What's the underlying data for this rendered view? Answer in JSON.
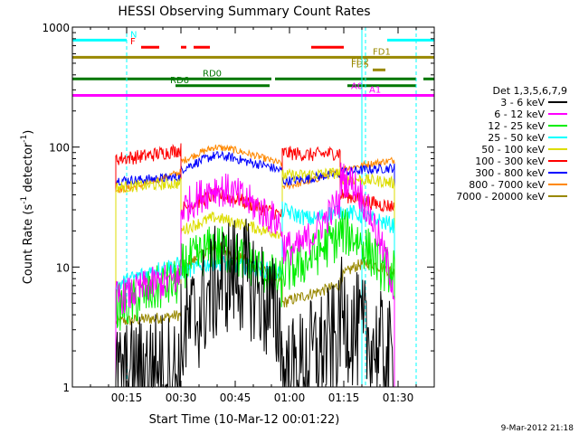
{
  "chart_data": {
    "type": "line",
    "title": "HESSI Observing Summary Count Rates",
    "xlabel": "Start Time (10-Mar-12 00:01:22)",
    "ylabel_main": "Count Rate (s",
    "ylabel_sup1": "-1",
    "ylabel_mid": " detector",
    "ylabel_sup2": "-1",
    "ylabel_end": ")",
    "date_stamp": "9-Mar-2012 21:18",
    "y_scale": "log",
    "ylim": [
      1,
      1000
    ],
    "xlim_minutes": [
      0,
      100
    ],
    "x_ticks": [
      {
        "label": "00:15",
        "value": 15
      },
      {
        "label": "00:30",
        "value": 30
      },
      {
        "label": "00:45",
        "value": 45
      },
      {
        "label": "01:00",
        "value": 60
      },
      {
        "label": "01:15",
        "value": 75
      },
      {
        "label": "01:30",
        "value": 90
      }
    ],
    "y_ticks": [
      {
        "label": "1",
        "value": 1
      },
      {
        "label": "10",
        "value": 10
      },
      {
        "label": "100",
        "value": 100
      },
      {
        "label": "1000",
        "value": 1000
      }
    ],
    "legend_title": "Det 1,3,5,6,7,9",
    "legend_placement": "right, outside plot",
    "series": [
      {
        "name": "3 - 6 keV",
        "color": "#000000",
        "start": 12,
        "end": 89,
        "segments": [
          {
            "from": 12,
            "to": 30,
            "values": [
              1.1,
              1.2,
              1.5,
              1.4,
              1.3
            ]
          },
          {
            "from": 30,
            "to": 58,
            "values": [
              2.5,
              4,
              7,
              9,
              8,
              5,
              3
            ]
          },
          {
            "from": 58,
            "to": 74,
            "values": [
              1.2,
              1.3,
              1.8,
              2.2,
              2.5
            ]
          },
          {
            "from": 74,
            "to": 89,
            "values": [
              4,
              3,
              2.5,
              2,
              1.5
            ]
          }
        ],
        "noise": 0.5
      },
      {
        "name": "6 - 12 keV",
        "color": "#ff00ff",
        "start": 12,
        "end": 89,
        "segments": [
          {
            "from": 12,
            "to": 30,
            "values": [
              5.5,
              6,
              7,
              7.5,
              8
            ]
          },
          {
            "from": 30,
            "to": 58,
            "values": [
              30,
              38,
              46,
              42,
              35,
              28,
              22
            ]
          },
          {
            "from": 58,
            "to": 74,
            "values": [
              15,
              14,
              18,
              25,
              35
            ]
          },
          {
            "from": 74,
            "to": 89,
            "values": [
              55,
              50,
              30,
              15,
              6
            ]
          }
        ],
        "noise": 0.15
      },
      {
        "name": "12 - 25 keV",
        "color": "#00ee00",
        "start": 12,
        "end": 89,
        "segments": [
          {
            "from": 12,
            "to": 30,
            "values": [
              4.5,
              5,
              6,
              7,
              7.5
            ]
          },
          {
            "from": 30,
            "to": 58,
            "values": [
              10,
              12,
              15,
              13,
              11,
              9,
              7
            ]
          },
          {
            "from": 58,
            "to": 74,
            "values": [
              9,
              10,
              12,
              15,
              18
            ]
          },
          {
            "from": 74,
            "to": 89,
            "values": [
              20,
              18,
              14,
              10,
              9
            ]
          }
        ],
        "noise": 0.2
      },
      {
        "name": "25 - 50 keV",
        "color": "#00ffff",
        "start": 12,
        "end": 89,
        "segments": [
          {
            "from": 12,
            "to": 30,
            "values": [
              7,
              8,
              9,
              10,
              10.5
            ]
          },
          {
            "from": 30,
            "to": 58,
            "values": [
              9,
              10,
              11,
              10.5,
              10,
              9.5,
              9
            ]
          },
          {
            "from": 58,
            "to": 74,
            "values": [
              30,
              27,
              25,
              27,
              30
            ]
          },
          {
            "from": 74,
            "to": 89,
            "values": [
              29,
              28,
              26,
              24,
              22
            ]
          }
        ],
        "noise": 0.07
      },
      {
        "name": "50 - 100 keV",
        "color": "#dddd00",
        "start": 12,
        "end": 89,
        "segments": [
          {
            "from": 12,
            "to": 30,
            "values": [
              46,
              47,
              48,
              49,
              50
            ]
          },
          {
            "from": 30,
            "to": 58,
            "values": [
              20,
              23,
              26,
              24,
              22,
              20,
              19
            ]
          },
          {
            "from": 58,
            "to": 74,
            "values": [
              58,
              58,
              59,
              60,
              61
            ]
          },
          {
            "from": 74,
            "to": 89,
            "values": [
              55,
              54,
              53,
              52,
              50
            ]
          }
        ],
        "noise": 0.05
      },
      {
        "name": "100 - 300 keV",
        "color": "#ff0000",
        "start": 12,
        "end": 89,
        "segments": [
          {
            "from": 12,
            "to": 30,
            "values": [
              80,
              82,
              85,
              90,
              95
            ]
          },
          {
            "from": 30,
            "to": 58,
            "values": [
              30,
              35,
              40,
              38,
              34,
              30,
              27
            ]
          },
          {
            "from": 58,
            "to": 74,
            "values": [
              90,
              88,
              86,
              88,
              90
            ]
          },
          {
            "from": 74,
            "to": 89,
            "values": [
              40,
              38,
              35,
              33,
              32
            ]
          }
        ],
        "noise": 0.06
      },
      {
        "name": "300 - 800 keV",
        "color": "#0000ff",
        "start": 12,
        "end": 89,
        "segments": [
          {
            "from": 12,
            "to": 30,
            "values": [
              53,
              53,
              54,
              55,
              56
            ]
          },
          {
            "from": 30,
            "to": 58,
            "values": [
              65,
              75,
              85,
              82,
              75,
              70,
              63
            ]
          },
          {
            "from": 58,
            "to": 74,
            "values": [
              52,
              53,
              55,
              58,
              60
            ]
          },
          {
            "from": 74,
            "to": 89,
            "values": [
              62,
              63,
              65,
              66,
              67
            ]
          }
        ],
        "noise": 0.04
      },
      {
        "name": "800 - 7000 keV",
        "color": "#ff8800",
        "start": 12,
        "end": 89,
        "segments": [
          {
            "from": 12,
            "to": 30,
            "values": [
              44,
              46,
              50,
              56,
              62
            ]
          },
          {
            "from": 30,
            "to": 58,
            "values": [
              75,
              88,
              100,
              96,
              88,
              80,
              72
            ]
          },
          {
            "from": 58,
            "to": 74,
            "values": [
              47,
              49,
              52,
              58,
              62
            ]
          },
          {
            "from": 74,
            "to": 89,
            "values": [
              66,
              68,
              72,
              75,
              78
            ]
          }
        ],
        "noise": 0.03
      },
      {
        "name": "7000 - 20000 keV",
        "color": "#998800",
        "start": 12,
        "end": 89,
        "segments": [
          {
            "from": 12,
            "to": 30,
            "values": [
              3.5,
              3.6,
              3.7,
              3.8,
              4
            ]
          },
          {
            "from": 30,
            "to": 58,
            "values": [
              9,
              12,
              15,
              13,
              11,
              9,
              7.5
            ]
          },
          {
            "from": 58,
            "to": 74,
            "values": [
              5,
              5.5,
              6,
              6.5,
              7
            ]
          },
          {
            "from": 74,
            "to": 89,
            "values": [
              8,
              10,
              11,
              10,
              9
            ]
          }
        ],
        "noise": 0.05
      }
    ],
    "state_bars": [
      {
        "label": "N",
        "color": "#00ffff",
        "y": 780,
        "segments": [
          [
            0,
            15
          ],
          [
            87,
            100
          ]
        ],
        "label_at": 16
      },
      {
        "label": "F",
        "color": "#ff0000",
        "y": 680,
        "segments": [
          [
            19,
            24
          ],
          [
            30,
            31.5
          ],
          [
            33.5,
            38
          ],
          [
            66,
            75
          ]
        ],
        "label_at": 16
      },
      {
        "label": "FD1",
        "color": "#998800",
        "y": 560,
        "segments": [
          [
            0,
            100
          ]
        ],
        "label_at": 83
      },
      {
        "label": "FD2",
        "color": "#998800",
        "y": 460,
        "segments": [],
        "label_at": 77
      },
      {
        "label": "FD5",
        "color": "#998800",
        "y": 440,
        "segments": [
          [
            83,
            86.5
          ]
        ],
        "label_at": 77
      },
      {
        "label": "RD0",
        "color": "#007700",
        "y": 370,
        "segments": [
          [
            0,
            55
          ],
          [
            56,
            95
          ],
          [
            97,
            100
          ]
        ],
        "label_at": 36
      },
      {
        "label": "RD6",
        "color": "#007700",
        "y": 325,
        "segments": [
          [
            28.5,
            54.5
          ],
          [
            76,
            95
          ]
        ],
        "label_at": 27
      },
      {
        "label": "A0",
        "color": "#ff00ff",
        "y": 290,
        "segments": [],
        "label_at": 77
      },
      {
        "label": "A1",
        "color": "#ff00ff",
        "y": 270,
        "segments": [
          [
            0,
            100
          ]
        ],
        "label_at": 82
      }
    ],
    "vertical_lines": [
      {
        "x": 0,
        "style": "solid",
        "color": "#00ffff"
      },
      {
        "x": 15,
        "style": "dashed",
        "color": "#00ffff"
      },
      {
        "x": 80,
        "style": "solid",
        "color": "#00ffff"
      },
      {
        "x": 81,
        "style": "dashed",
        "color": "#00ffff"
      },
      {
        "x": 95,
        "style": "dashed",
        "color": "#00ffff"
      }
    ]
  }
}
